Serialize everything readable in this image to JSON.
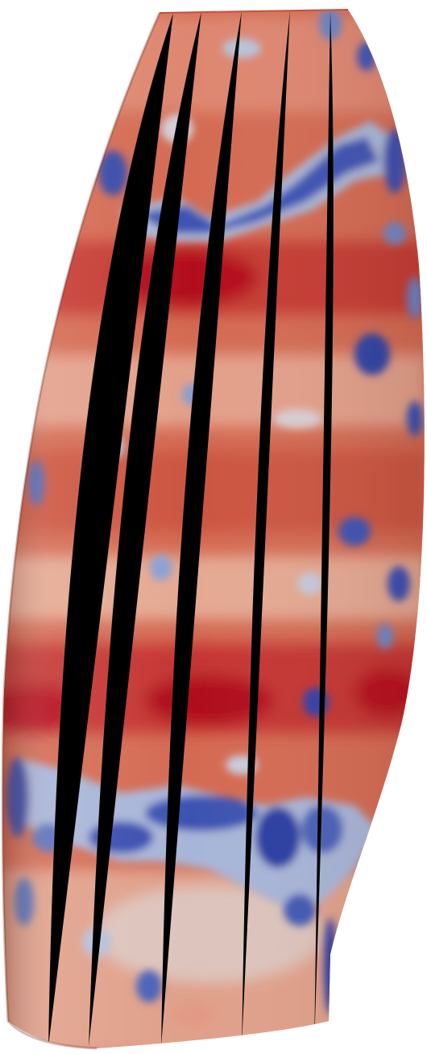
{
  "scene": {
    "background_color": "#ffffff",
    "object": "3d-surface-render",
    "colormap": {
      "name": "cool-to-warm",
      "low_color": "#2b3fa8",
      "mid_color": "#dcd6d4",
      "high_color": "#b40a1e"
    }
  }
}
